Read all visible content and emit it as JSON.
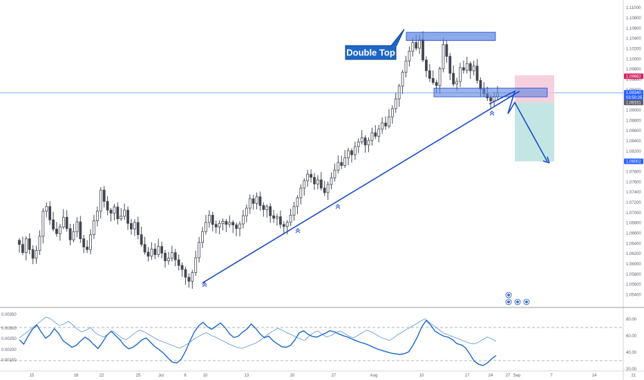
{
  "chart_data": {
    "type": "candlestick",
    "symbol_pair": "EURUSD-style FX pair",
    "price_axis": {
      "ticks": [
        "1.11000",
        "1.10800",
        "1.10600",
        "1.10400",
        "1.10200",
        "1.10000",
        "1.09800",
        "1.09600",
        "1.09400",
        "1.09200",
        "1.09000",
        "1.08800",
        "1.08600",
        "1.08400",
        "1.08200",
        "1.08000",
        "1.07800",
        "1.07600",
        "1.07400",
        "1.07200",
        "1.07000",
        "1.06800",
        "1.06600",
        "1.06400",
        "1.06200",
        "1.06000",
        "1.05800",
        "1.05600",
        "1.05400",
        "1.05200"
      ],
      "range": [
        1.0515,
        1.1115
      ],
      "badges": [
        {
          "label": "1.09662",
          "value": 1.09662,
          "color": "#d6245e"
        },
        {
          "label": "1.09340",
          "value": 1.0934,
          "color": "#2962ff"
        },
        {
          "label": "03:50:25",
          "value": 1.0925,
          "color": "#2962ff"
        },
        {
          "label": "1.09151",
          "value": 1.09151,
          "color": "#5d606b"
        },
        {
          "label": "1.08002",
          "value": 1.08002,
          "color": "#2962ff"
        }
      ]
    },
    "date_axis": {
      "labels": [
        "15",
        "18",
        "22",
        "25",
        "Jul",
        "6",
        "10",
        "13",
        "20",
        "27",
        "Aug",
        "10",
        "17",
        "24",
        "27",
        "Sep",
        "7",
        "14",
        "21"
      ]
    },
    "key_levels": {
      "horizontal_line": 1.0934,
      "double_top_zone": [
        1.1036,
        1.1052
      ],
      "support_zone": [
        1.0926,
        1.0943
      ],
      "risk_box": [
        1.0915,
        1.0968
      ],
      "reward_box": [
        1.08,
        1.0915
      ]
    },
    "trendline": {
      "start_price": 1.0563,
      "end_price": 1.0937
    },
    "projection": [
      1.0915,
      1.0937,
      1.0893,
      1.0915,
      1.08
    ],
    "series": [
      {
        "name": "price",
        "values_close": [
          1.0638,
          1.0622,
          1.0649,
          1.0628,
          1.0611,
          1.0626,
          1.0654,
          1.0703,
          1.0712,
          1.0686,
          1.0668,
          1.0659,
          1.0672,
          1.0691,
          1.0669,
          1.0647,
          1.0663,
          1.0682,
          1.0649,
          1.0633,
          1.0628,
          1.0657,
          1.0684,
          1.0703,
          1.0744,
          1.0722,
          1.0705,
          1.0699,
          1.0711,
          1.0688,
          1.0693,
          1.0705,
          1.0679,
          1.0668,
          1.0681,
          1.0657,
          1.0638,
          1.0623,
          1.0615,
          1.0629,
          1.0618,
          1.0634,
          1.0621,
          1.0606,
          1.0611,
          1.0622,
          1.0608,
          1.0597,
          1.0589,
          1.0574,
          1.0566,
          1.0583,
          1.0612,
          1.0642,
          1.0663,
          1.0681,
          1.0695,
          1.0677,
          1.0672,
          1.0679,
          1.0683,
          1.0677,
          1.0681,
          1.0676,
          1.0669,
          1.0678,
          1.0694,
          1.0709,
          1.0727,
          1.0718,
          1.0731,
          1.0714,
          1.0706,
          1.0712,
          1.0694,
          1.0689,
          1.0692,
          1.0677,
          1.0673,
          1.0681,
          1.0695,
          1.0712,
          1.0729,
          1.0748,
          1.0762,
          1.0775,
          1.0769,
          1.0756,
          1.0764,
          1.0748,
          1.0739,
          1.0755,
          1.0768,
          1.0783,
          1.0798,
          1.0792,
          1.0807,
          1.0821,
          1.0813,
          1.0829,
          1.0838,
          1.0846,
          1.0832,
          1.0841,
          1.0856,
          1.0849,
          1.0863,
          1.0875,
          1.0869,
          1.0887,
          1.0903,
          1.0922,
          1.0947,
          1.0974,
          1.0996,
          1.1015,
          1.1032,
          1.1021,
          1.1038,
          1.0998,
          1.0977,
          1.0962,
          1.0954,
          1.0948,
          1.0981,
          1.1028,
          1.1005,
          1.0972,
          1.0951,
          1.0956,
          1.0983,
          1.0978,
          1.0991,
          1.0977,
          1.0986,
          1.0958,
          1.0941,
          1.0932,
          1.0924,
          1.0918,
          1.0926,
          1.0934
        ]
      },
      {
        "name": "osc_a",
        "values": [
          0.00248,
          0.00231,
          0.00262,
          0.00289,
          0.00305,
          0.00278,
          0.00254,
          0.00266,
          0.00291,
          0.00272,
          0.00244,
          0.00232,
          0.00219,
          0.00226,
          0.00243,
          0.00258,
          0.00247,
          0.00229,
          0.00214,
          0.00238,
          0.00265,
          0.00281,
          0.00264,
          0.00248,
          0.00226,
          0.00213,
          0.00219,
          0.00232,
          0.00247,
          0.00255,
          0.00238,
          0.00221,
          0.00209,
          0.00195,
          0.00177,
          0.00161,
          0.00158,
          0.00172,
          0.00204,
          0.00243,
          0.00278,
          0.00302,
          0.00316,
          0.00298,
          0.00289,
          0.00301,
          0.00313,
          0.00296,
          0.00272,
          0.00257,
          0.00261,
          0.00277,
          0.00289,
          0.00309,
          0.00293,
          0.00271,
          0.00256,
          0.00262,
          0.00244,
          0.00232,
          0.00221,
          0.00219,
          0.00226,
          0.00248,
          0.00275,
          0.00283,
          0.00269,
          0.00261,
          0.00258,
          0.00266,
          0.00274,
          0.00283,
          0.00279,
          0.00271,
          0.00264,
          0.00259,
          0.00251,
          0.00244,
          0.00238,
          0.00233,
          0.00226,
          0.00218,
          0.00211,
          0.00206,
          0.00201,
          0.00196,
          0.00193,
          0.00191,
          0.00194,
          0.00201,
          0.00227,
          0.00259,
          0.00298,
          0.00323,
          0.00306,
          0.00282,
          0.00271,
          0.00262,
          0.00258,
          0.00249,
          0.00233,
          0.00228,
          0.00217,
          0.00192,
          0.00165,
          0.00153,
          0.00148,
          0.00158,
          0.00174,
          0.00187
        ]
      },
      {
        "name": "osc_b",
        "values": [
          54,
          58,
          62,
          66,
          70,
          74,
          78,
          76,
          72,
          68,
          70,
          73,
          69,
          64,
          61,
          63,
          66,
          60,
          57,
          55,
          59,
          62,
          58,
          54,
          52,
          56,
          60,
          63,
          61,
          58,
          55,
          52,
          50,
          48,
          46,
          44,
          42,
          45,
          48,
          52,
          55,
          58,
          60,
          57,
          55,
          52,
          50,
          47,
          45,
          43,
          42,
          44,
          46,
          48,
          51,
          55,
          59,
          62,
          65,
          63,
          60,
          58,
          55,
          53,
          51,
          56,
          60,
          62,
          58,
          55,
          57,
          60,
          62,
          59,
          56,
          54,
          57,
          60,
          63,
          61,
          58,
          55,
          53,
          51,
          54,
          58,
          61,
          64,
          67,
          70,
          73,
          76,
          72,
          68,
          64,
          60,
          58,
          56,
          54,
          52,
          50,
          48,
          47,
          49,
          52,
          55,
          53,
          50
        ]
      }
    ],
    "indicator_axis": {
      "left_ticks": [
        "0.00350",
        "0.00300",
        "0.00250",
        "0.00200",
        "0.00150"
      ],
      "right_ticks": [
        "80.00",
        "60.00",
        "40.00",
        "20.00"
      ]
    },
    "annotations": [
      "Double Top"
    ]
  },
  "colors": {
    "candle": "#434651",
    "trendline": "#1848c8",
    "zone_fill": "#5b84e0",
    "zone_stroke": "#1848c8",
    "risk": "#f5c8d8",
    "reward": "#b8e2e0",
    "hline": "#4a90e2",
    "callout": "#1e67c8",
    "osc_thick": "#1466c8",
    "osc_thin": "#3d7fd8"
  },
  "icons": [
    "chevron-up-double-icon",
    "event-flag-icon",
    "settings-gear-icon"
  ]
}
